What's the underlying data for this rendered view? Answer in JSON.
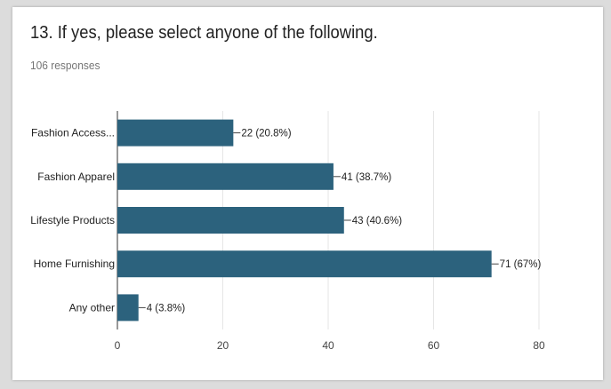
{
  "header": {
    "title": "13. If yes, please select anyone of the following.",
    "responses": "106 responses"
  },
  "colors": {
    "bar": "#2c627d",
    "grid": "#e6e6e6",
    "axis": "#333333"
  },
  "chart_data": {
    "type": "bar",
    "orientation": "horizontal",
    "title": "",
    "xlabel": "",
    "ylabel": "",
    "categories": [
      "Fashion Access...",
      "Fashion Apparel",
      "Lifestyle Products",
      "Home Furnishing",
      "Any other"
    ],
    "values": [
      22,
      41,
      43,
      71,
      4
    ],
    "data_labels": [
      "22 (20.8%)",
      "41 (38.7%)",
      "43 (40.6%)",
      "71 (67%)",
      "4 (3.8%)"
    ],
    "xlim": [
      0,
      80
    ],
    "xticks": [
      0,
      20,
      40,
      60,
      80
    ],
    "grid": true,
    "legend": "none"
  }
}
